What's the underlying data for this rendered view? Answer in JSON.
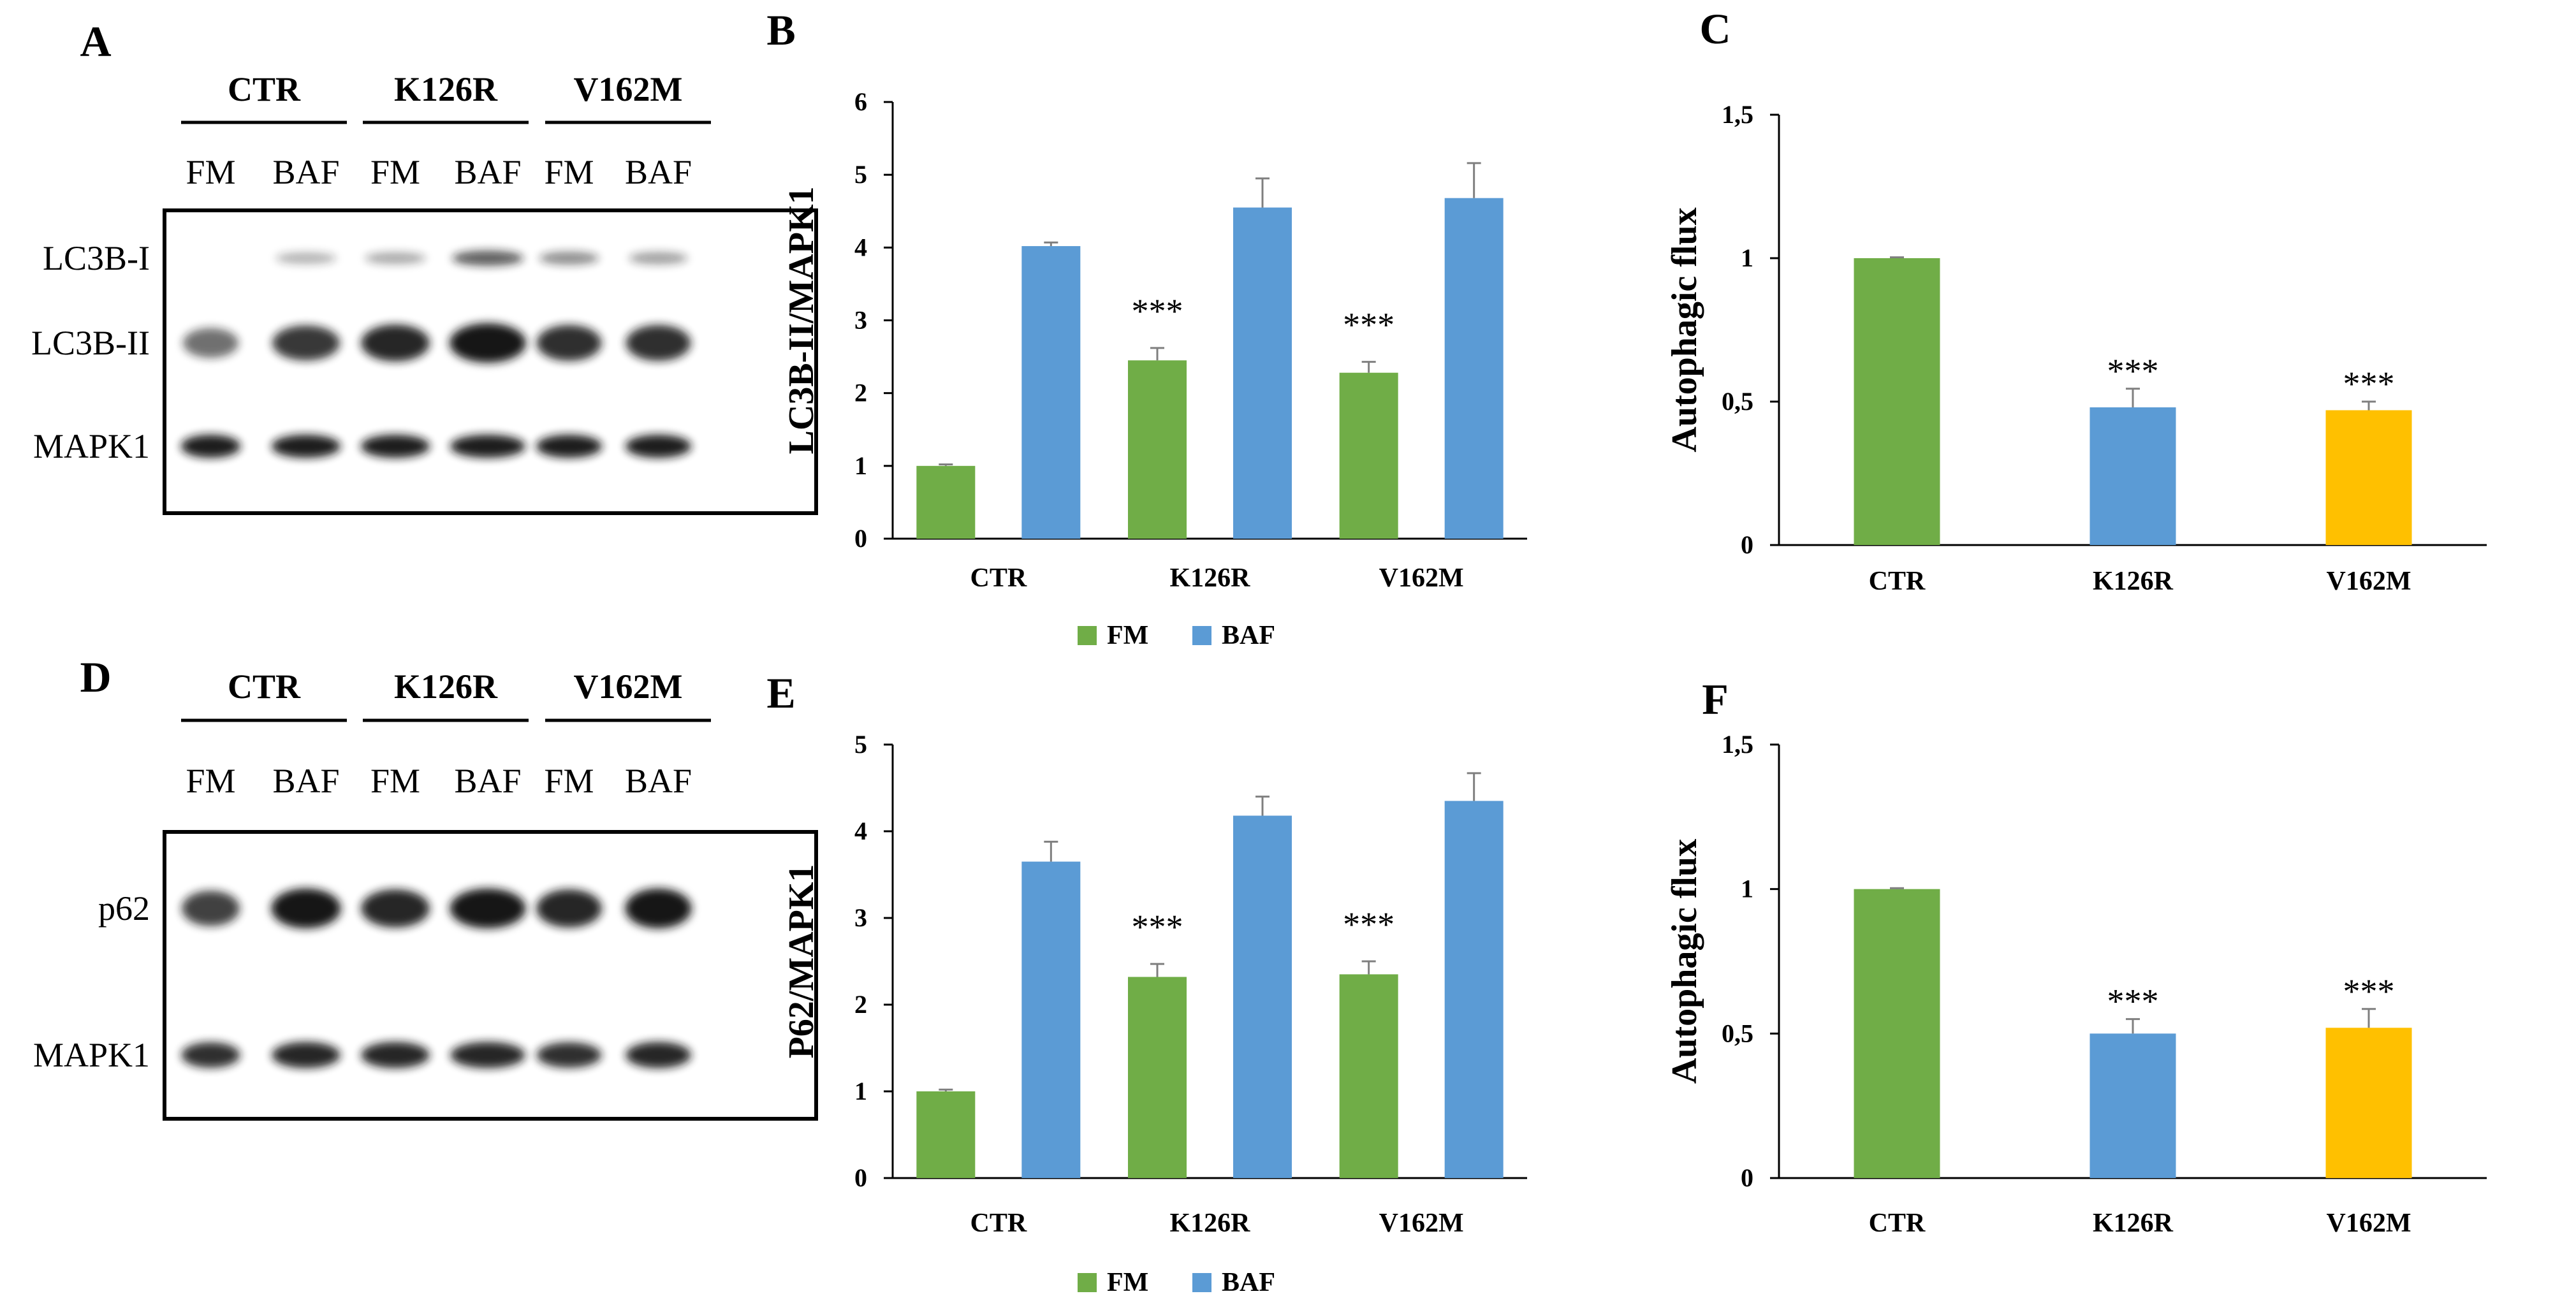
{
  "figure": {
    "colors": {
      "fm": "#70ad47",
      "baf": "#5b9bd5",
      "v162m": "#ffc000",
      "axis": "#000000",
      "error": "#7f7f7f",
      "band": "#141414"
    },
    "blots": [
      {
        "id": "A",
        "panel_label": "A",
        "group_labels": [
          "CTR",
          "K126R",
          "V162M"
        ],
        "lane_labels": [
          "FM",
          "BAF",
          "FM",
          "BAF",
          "FM",
          "BAF"
        ],
        "row_labels": [
          "LC3B-I",
          "LC3B-II",
          "MAPK1"
        ],
        "band_intensities": {
          "LC3B-I": [
            0.0,
            0.1,
            0.15,
            0.55,
            0.3,
            0.2
          ],
          "LC3B-II": [
            0.45,
            0.75,
            0.85,
            1.0,
            0.8,
            0.8
          ],
          "MAPK1": [
            0.9,
            0.9,
            0.9,
            0.9,
            0.9,
            0.9
          ]
        }
      },
      {
        "id": "D",
        "panel_label": "D",
        "group_labels": [
          "CTR",
          "K126R",
          "V162M"
        ],
        "lane_labels": [
          "FM",
          "BAF",
          "FM",
          "BAF",
          "FM",
          "BAF"
        ],
        "row_labels": [
          "p62",
          "MAPK1"
        ],
        "band_intensities": {
          "p62": [
            0.7,
            0.95,
            0.85,
            0.95,
            0.85,
            0.95
          ],
          "MAPK1": [
            0.8,
            0.85,
            0.85,
            0.85,
            0.8,
            0.85
          ]
        }
      }
    ]
  },
  "chart_data": [
    {
      "id": "B",
      "panel_label": "B",
      "type": "bar",
      "categories": [
        "CTR",
        "K126R",
        "V162M"
      ],
      "series": [
        {
          "name": "FM",
          "values": [
            1.0,
            2.45,
            2.28
          ],
          "errors": [
            0.02,
            0.17,
            0.15
          ]
        },
        {
          "name": "BAF",
          "values": [
            4.02,
            4.55,
            4.68
          ],
          "errors": [
            0.05,
            0.4,
            0.48
          ]
        }
      ],
      "annotations": [
        {
          "category": "K126R",
          "series": "FM",
          "text": "***"
        },
        {
          "category": "V162M",
          "series": "FM",
          "text": "***"
        }
      ],
      "title": "",
      "xlabel": "",
      "ylabel": "LC3B-II/MAPK1",
      "ylim": [
        0,
        6
      ],
      "yticks": [
        0,
        1,
        2,
        3,
        4,
        5,
        6
      ],
      "ytick_labels": [
        "0",
        "1",
        "2",
        "3",
        "4",
        "5",
        "6"
      ],
      "legend": [
        "FM",
        "BAF"
      ],
      "legend_position": "bottom-center",
      "grid": false
    },
    {
      "id": "C",
      "panel_label": "C",
      "type": "bar",
      "categories": [
        "CTR",
        "K126R",
        "V162M"
      ],
      "series": [
        {
          "name": "Autophagic flux",
          "values": [
            1.0,
            0.48,
            0.47
          ],
          "errors": [
            0.003,
            0.065,
            0.03
          ]
        }
      ],
      "annotations": [
        {
          "category": "K126R",
          "series": "Autophagic flux",
          "text": "***"
        },
        {
          "category": "V162M",
          "series": "Autophagic flux",
          "text": "***"
        }
      ],
      "title": "",
      "xlabel": "",
      "ylabel": "Autophagic flux",
      "ylim": [
        0,
        1.5
      ],
      "yticks": [
        0,
        0.5,
        1,
        1.5
      ],
      "ytick_labels": [
        "0",
        "0,5",
        "1",
        "1,5"
      ],
      "legend": [],
      "legend_position": "none",
      "grid": false
    },
    {
      "id": "E",
      "panel_label": "E",
      "type": "bar",
      "categories": [
        "CTR",
        "K126R",
        "V162M"
      ],
      "series": [
        {
          "name": "FM",
          "values": [
            1.0,
            2.32,
            2.35
          ],
          "errors": [
            0.02,
            0.15,
            0.15
          ]
        },
        {
          "name": "BAF",
          "values": [
            3.65,
            4.18,
            4.35
          ],
          "errors": [
            0.23,
            0.22,
            0.32
          ]
        }
      ],
      "annotations": [
        {
          "category": "K126R",
          "series": "FM",
          "text": "***"
        },
        {
          "category": "V162M",
          "series": "FM",
          "text": "***"
        }
      ],
      "title": "",
      "xlabel": "",
      "ylabel": "P62/MAPK1",
      "ylim": [
        0,
        5
      ],
      "yticks": [
        0,
        1,
        2,
        3,
        4,
        5
      ],
      "ytick_labels": [
        "0",
        "1",
        "2",
        "3",
        "4",
        "5"
      ],
      "legend": [
        "FM",
        "BAF"
      ],
      "legend_position": "bottom-center",
      "grid": false
    },
    {
      "id": "F",
      "panel_label": "F",
      "type": "bar",
      "categories": [
        "CTR",
        "K126R",
        "V162M"
      ],
      "series": [
        {
          "name": "Autophagic flux",
          "values": [
            1.0,
            0.5,
            0.52
          ],
          "errors": [
            0.003,
            0.05,
            0.065
          ]
        }
      ],
      "annotations": [
        {
          "category": "K126R",
          "series": "Autophagic flux",
          "text": "***"
        },
        {
          "category": "V162M",
          "series": "Autophagic flux",
          "text": "***"
        }
      ],
      "title": "",
      "xlabel": "",
      "ylabel": "Autophagic flux",
      "ylim": [
        0,
        1.5
      ],
      "yticks": [
        0,
        0.5,
        1,
        1.5
      ],
      "ytick_labels": [
        "0",
        "0,5",
        "1",
        "1,5"
      ],
      "legend": [],
      "legend_position": "none",
      "grid": false
    }
  ]
}
